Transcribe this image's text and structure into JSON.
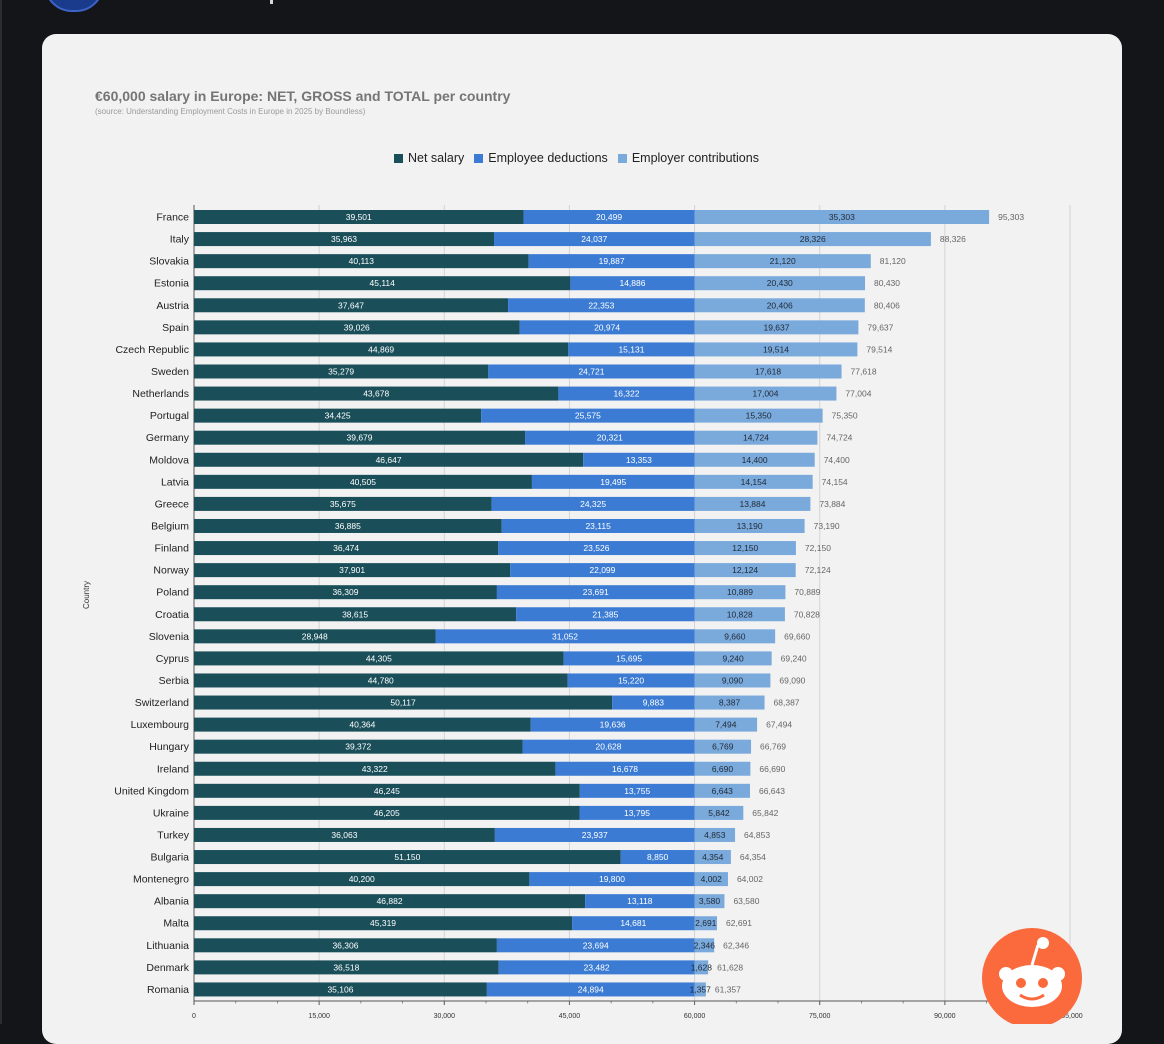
{
  "colors": {
    "net_salary": "#1a4f5a",
    "employee_deductions": "#3b7bd3",
    "employer_contributions": "#7aa9dc",
    "reddit_orange": "#fb6a3d"
  },
  "icons": {
    "reddit_logo": "reddit-snoo-icon",
    "avatar": "avatar"
  },
  "chart_data": {
    "type": "bar",
    "orientation": "horizontal",
    "stacked": true,
    "title": "€60,000 salary in Europe: NET, GROSS and TOTAL per country",
    "subtitle": "(source: Understanding Employment Costs in Europe in 2025 by Boundless)",
    "xlabel": "",
    "ylabel": "Country",
    "xlim": [
      0,
      105000
    ],
    "x_ticks": [
      "0",
      "15,000",
      "30,000",
      "45,000",
      "60,000",
      "75,000",
      "90,000",
      "105,000"
    ],
    "legend_position": "top",
    "grid": true,
    "categories": [
      "France",
      "Italy",
      "Slovakia",
      "Estonia",
      "Austria",
      "Spain",
      "Czech Republic",
      "Sweden",
      "Netherlands",
      "Portugal",
      "Germany",
      "Moldova",
      "Latvia",
      "Greece",
      "Belgium",
      "Finland",
      "Norway",
      "Poland",
      "Croatia",
      "Slovenia",
      "Cyprus",
      "Serbia",
      "Switzerland",
      "Luxembourg",
      "Hungary",
      "Ireland",
      "United Kingdom",
      "Ukraine",
      "Turkey",
      "Bulgaria",
      "Montenegro",
      "Albania",
      "Malta",
      "Lithuania",
      "Denmark",
      "Romania"
    ],
    "series": [
      {
        "name": "Net salary",
        "values": [
          39501,
          35963,
          40113,
          45114,
          37647,
          39026,
          44869,
          35279,
          43678,
          34425,
          39679,
          46647,
          40505,
          35675,
          36885,
          36474,
          37901,
          36309,
          38615,
          28948,
          44305,
          44780,
          50117,
          40364,
          39372,
          43322,
          46245,
          46205,
          36063,
          51150,
          40200,
          46882,
          45319,
          36306,
          36518,
          35106
        ],
        "labels": [
          "39,501",
          "35,963",
          "40,113",
          "45,114",
          "37,647",
          "39,026",
          "44,869",
          "35,279",
          "43,678",
          "34,425",
          "39,679",
          "46,647",
          "40,505",
          "35,675",
          "36,885",
          "36,474",
          "37,901",
          "36,309",
          "38,615",
          "28,948",
          "44,305",
          "44,780",
          "50,117",
          "40,364",
          "39,372",
          "43,322",
          "46,245",
          "46,205",
          "36,063",
          "51,150",
          "40,200",
          "46,882",
          "45,319",
          "36,306",
          "36,518",
          "35,106"
        ]
      },
      {
        "name": "Employee deductions",
        "values": [
          20499,
          24037,
          19887,
          14886,
          22353,
          20974,
          15131,
          24721,
          16322,
          25575,
          20321,
          13353,
          19495,
          24325,
          23115,
          23526,
          22099,
          23691,
          21385,
          31052,
          15695,
          15220,
          9883,
          19636,
          20628,
          16678,
          13755,
          13795,
          23937,
          8850,
          19800,
          13118,
          14681,
          23694,
          23482,
          24894
        ],
        "labels": [
          "20,499",
          "24,037",
          "19,887",
          "14,886",
          "22,353",
          "20,974",
          "15,131",
          "24,721",
          "16,322",
          "25,575",
          "20,321",
          "13,353",
          "19,495",
          "24,325",
          "23,115",
          "23,526",
          "22,099",
          "23,691",
          "21,385",
          "31,052",
          "15,695",
          "15,220",
          "9,883",
          "19,636",
          "20,628",
          "16,678",
          "13,755",
          "13,795",
          "23,937",
          "8,850",
          "19,800",
          "13,118",
          "14,681",
          "23,694",
          "23,482",
          "24,894"
        ]
      },
      {
        "name": "Employer contributions",
        "values": [
          35303,
          28326,
          21120,
          20430,
          20406,
          19637,
          19514,
          17618,
          17004,
          15350,
          14724,
          14400,
          14154,
          13884,
          13190,
          12150,
          12124,
          10889,
          10828,
          9660,
          9240,
          9090,
          8387,
          7494,
          6769,
          6690,
          6643,
          5842,
          4853,
          4354,
          4002,
          3580,
          2691,
          2346,
          1628,
          1357
        ],
        "labels": [
          "35,303",
          "28,326",
          "21,120",
          "20,430",
          "20,406",
          "19,637",
          "19,514",
          "17,618",
          "17,004",
          "15,350",
          "14,724",
          "14,400",
          "14,154",
          "13,884",
          "13,190",
          "12,150",
          "12,124",
          "10,889",
          "10,828",
          "9,660",
          "9,240",
          "9,090",
          "8,387",
          "7,494",
          "6,769",
          "6,690",
          "6,643",
          "5,842",
          "4,853",
          "4,354",
          "4,002",
          "3,580",
          "2,691",
          "2,346",
          "1,628",
          "1,357"
        ]
      }
    ],
    "totals": [
      95303,
      88326,
      81120,
      80430,
      80406,
      79637,
      79514,
      77618,
      77004,
      75350,
      74724,
      74400,
      74154,
      73884,
      73190,
      72150,
      72124,
      70889,
      70828,
      69660,
      69240,
      69090,
      68387,
      67494,
      66769,
      66690,
      66643,
      65842,
      64853,
      64354,
      64002,
      63580,
      62691,
      62346,
      61628,
      61357
    ],
    "total_labels": [
      "95,303",
      "88,326",
      "81,120",
      "80,430",
      "80,406",
      "79,637",
      "79,514",
      "77,618",
      "77,004",
      "75,350",
      "74,724",
      "74,400",
      "74,154",
      "73,884",
      "73,190",
      "72,150",
      "72,124",
      "70,889",
      "70,828",
      "69,660",
      "69,240",
      "69,090",
      "68,387",
      "67,494",
      "66,769",
      "66,690",
      "66,643",
      "65,842",
      "64,853",
      "64,354",
      "64,002",
      "63,580",
      "62,691",
      "62,346",
      "61,628",
      "61,357"
    ]
  }
}
